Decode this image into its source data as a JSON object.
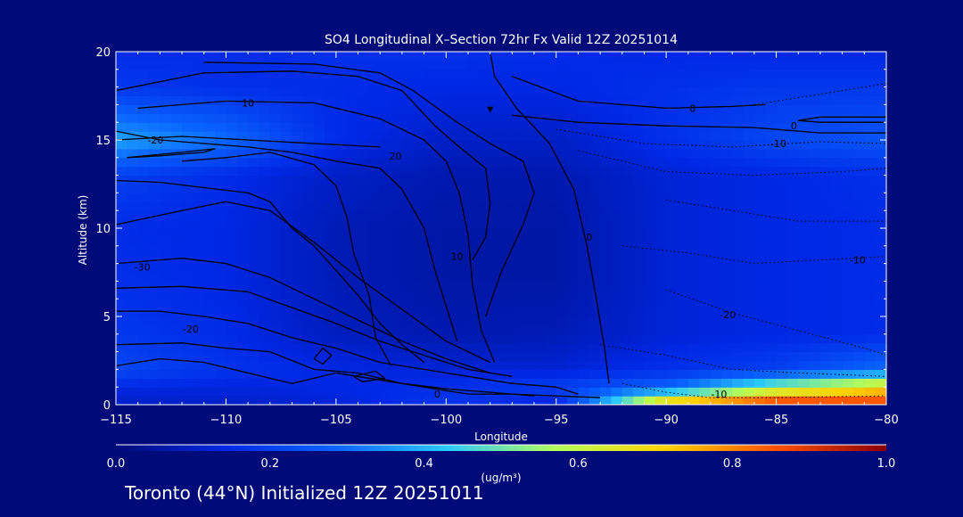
{
  "chart_data": {
    "type": "heatmap",
    "title": "SO4 Longitudinal X–Section 72hr  Fx Valid 12Z 20251014",
    "xlabel": "Longitude",
    "ylabel": "Altitude (km)",
    "xlim": [
      -115,
      -80
    ],
    "ylim": [
      0,
      20
    ],
    "x_ticks": [
      -115,
      -110,
      -105,
      -100,
      -95,
      -90,
      -85,
      -80
    ],
    "x_tick_labels": [
      "−115",
      "−110",
      "−105",
      "−100",
      "−95",
      "−90",
      "−85",
      "−80"
    ],
    "y_ticks": [
      0,
      5,
      10,
      15,
      20
    ],
    "y_tick_labels": [
      "0",
      "5",
      "10",
      "15",
      "20"
    ],
    "colorbar": {
      "min": 0.0,
      "max": 1.0,
      "ticks": [
        0.0,
        0.2,
        0.4,
        0.6,
        0.8,
        1.0
      ],
      "tick_labels": [
        "0.0",
        "0.2",
        "0.4",
        "0.6",
        "0.8",
        "1.0"
      ],
      "units": "(ug/m³)",
      "colors": [
        "#000a78",
        "#0028e6",
        "#0a64ff",
        "#28c8ff",
        "#b4ff5a",
        "#ffd200",
        "#ff5000",
        "#8c0000"
      ]
    },
    "concentration_field": {
      "lon": [
        -115,
        -110,
        -105,
        -100,
        -95,
        -90,
        -85,
        -80
      ],
      "alt": [
        0,
        1,
        2,
        4,
        7,
        10,
        13,
        15,
        18,
        20
      ],
      "values": [
        [
          0.1,
          0.1,
          0.12,
          0.18,
          0.12,
          0.8,
          0.95,
          0.9
        ],
        [
          0.14,
          0.13,
          0.14,
          0.16,
          0.2,
          0.28,
          0.55,
          0.7
        ],
        [
          0.22,
          0.17,
          0.14,
          0.12,
          0.12,
          0.16,
          0.2,
          0.3
        ],
        [
          0.18,
          0.15,
          0.09,
          0.07,
          0.08,
          0.12,
          0.14,
          0.15
        ],
        [
          0.16,
          0.14,
          0.08,
          0.06,
          0.06,
          0.12,
          0.14,
          0.15
        ],
        [
          0.15,
          0.14,
          0.08,
          0.06,
          0.06,
          0.12,
          0.14,
          0.15
        ],
        [
          0.2,
          0.15,
          0.1,
          0.07,
          0.07,
          0.12,
          0.14,
          0.16
        ],
        [
          0.38,
          0.3,
          0.15,
          0.1,
          0.1,
          0.16,
          0.22,
          0.25
        ],
        [
          0.18,
          0.16,
          0.15,
          0.14,
          0.14,
          0.16,
          0.18,
          0.18
        ],
        [
          0.15,
          0.15,
          0.16,
          0.16,
          0.15,
          0.14,
          0.14,
          0.14
        ]
      ]
    },
    "contour_lines": [
      {
        "style": "solid",
        "points": [
          [
            -115,
            2.2
          ],
          [
            -113,
            2.6
          ],
          [
            -111,
            2.4
          ],
          [
            -109,
            1.8
          ],
          [
            -107,
            1.2
          ],
          [
            -105,
            1.8
          ],
          [
            -103,
            1.4
          ],
          [
            -101,
            1.0
          ],
          [
            -99,
            0.6
          ],
          [
            -97,
            0.6
          ],
          [
            -95,
            0.5
          ],
          [
            -93,
            0.4
          ]
        ]
      },
      {
        "style": "solid",
        "points": [
          [
            -115,
            3.4
          ],
          [
            -112,
            3.5
          ],
          [
            -110,
            3.2
          ],
          [
            -108,
            3.0
          ],
          [
            -106,
            2.0
          ],
          [
            -104,
            1.8
          ],
          [
            -102,
            1.2
          ],
          [
            -100,
            0.9
          ],
          [
            -98,
            0.7
          ],
          [
            -96,
            0.5
          ]
        ]
      },
      {
        "style": "solid",
        "points": [
          [
            -115,
            5.3
          ],
          [
            -113,
            5.3
          ],
          [
            -111,
            5.0
          ],
          [
            -109,
            4.6
          ],
          [
            -107,
            3.8
          ],
          [
            -105,
            3.2
          ],
          [
            -103,
            2.4
          ],
          [
            -101,
            2.0
          ],
          [
            -99,
            1.6
          ],
          [
            -97,
            1.2
          ],
          [
            -95,
            1.0
          ],
          [
            -94,
            0.6
          ]
        ]
      },
      {
        "style": "solid",
        "points": [
          [
            -115,
            6.6
          ],
          [
            -112,
            6.7
          ],
          [
            -109,
            6.4
          ],
          [
            -107,
            5.5
          ],
          [
            -105,
            4.6
          ],
          [
            -103,
            3.6
          ],
          [
            -101,
            2.8
          ],
          [
            -99,
            2.0
          ],
          [
            -97,
            1.6
          ]
        ]
      },
      {
        "style": "solid",
        "points": [
          [
            -115,
            8.0
          ],
          [
            -112,
            8.3
          ],
          [
            -110,
            8.0
          ],
          [
            -108,
            7.2
          ],
          [
            -106,
            6.0
          ],
          [
            -104,
            4.8
          ],
          [
            -102,
            3.6
          ],
          [
            -100,
            2.6
          ],
          [
            -98,
            1.8
          ]
        ]
      },
      {
        "style": "solid",
        "points": [
          [
            -115,
            10.2
          ],
          [
            -112,
            11.0
          ],
          [
            -110,
            11.5
          ],
          [
            -108,
            11.0
          ],
          [
            -106,
            9.2
          ],
          [
            -104,
            7.2
          ],
          [
            -102,
            5.4
          ],
          [
            -100,
            3.6
          ],
          [
            -98,
            2.4
          ]
        ]
      },
      {
        "style": "solid",
        "points": [
          [
            -115,
            12.7
          ],
          [
            -113,
            12.6
          ],
          [
            -111,
            12.3
          ],
          [
            -109,
            12.0
          ],
          [
            -108,
            11.5
          ],
          [
            -107,
            10.0
          ],
          [
            -106,
            9.0
          ],
          [
            -105,
            7.6
          ],
          [
            -104,
            6.2
          ],
          [
            -103,
            4.6
          ],
          [
            -102,
            3.4
          ],
          [
            -101,
            2.4
          ]
        ]
      },
      {
        "style": "solid",
        "points": [
          [
            -112,
            13.8
          ],
          [
            -110,
            14.0
          ],
          [
            -108,
            14.3
          ],
          [
            -106,
            13.6
          ],
          [
            -105,
            12.4
          ],
          [
            -104.5,
            10.6
          ],
          [
            -104.2,
            8.6
          ],
          [
            -103.5,
            6.2
          ],
          [
            -103.2,
            3.8
          ],
          [
            -102.5,
            2.2
          ]
        ]
      },
      {
        "style": "solid",
        "points": [
          [
            -115,
            15.5
          ],
          [
            -113,
            15.0
          ],
          [
            -111,
            14.8
          ],
          [
            -109,
            14.6
          ],
          [
            -107,
            14.3
          ],
          [
            -105,
            13.8
          ],
          [
            -103,
            13.4
          ],
          [
            -102,
            12.2
          ],
          [
            -101,
            10.0
          ],
          [
            -100.5,
            7.6
          ],
          [
            -100,
            5.6
          ],
          [
            -99.5,
            3.6
          ]
        ]
      },
      {
        "style": "solid",
        "points": [
          [
            -114,
            16.8
          ],
          [
            -110,
            17.2
          ],
          [
            -106,
            17.1
          ],
          [
            -103,
            16.2
          ],
          [
            -101,
            15.0
          ],
          [
            -100,
            13.8
          ],
          [
            -99.4,
            12.0
          ],
          [
            -99,
            9.6
          ],
          [
            -98.8,
            6.8
          ],
          [
            -98.4,
            4.2
          ],
          [
            -97.8,
            2.4
          ]
        ]
      },
      {
        "style": "solid",
        "points": [
          [
            -115,
            17.8
          ],
          [
            -111,
            18.8
          ],
          [
            -107,
            18.9
          ],
          [
            -104,
            18.6
          ],
          [
            -102,
            17.8
          ],
          [
            -100.5,
            15.8
          ],
          [
            -99.4,
            14.6
          ],
          [
            -98.2,
            13.4
          ],
          [
            -98,
            11.4
          ],
          [
            -98.2,
            9.5
          ],
          [
            -98.8,
            8.2
          ]
        ]
      },
      {
        "style": "solid",
        "points": [
          [
            -111,
            19.4
          ],
          [
            -106,
            19.3
          ],
          [
            -103,
            18.8
          ],
          [
            -101.5,
            17.8
          ],
          [
            -99.5,
            16.0
          ],
          [
            -98,
            14.8
          ],
          [
            -96.5,
            13.8
          ],
          [
            -96,
            12.0
          ],
          [
            -96.5,
            10.2
          ],
          [
            -97.5,
            7.5
          ],
          [
            -98.2,
            5.0
          ]
        ]
      },
      {
        "style": "solid",
        "points": [
          [
            -98,
            20
          ],
          [
            -97.8,
            18.6
          ],
          [
            -96.8,
            16.8
          ],
          [
            -95.3,
            14.8
          ],
          [
            -94.2,
            12.2
          ],
          [
            -93.6,
            9.0
          ],
          [
            -93.2,
            6.2
          ],
          [
            -92.8,
            3.2
          ],
          [
            -92.6,
            1.2
          ]
        ]
      },
      {
        "style": "solid",
        "points": [
          [
            -115,
            15.0
          ],
          [
            -112,
            15.2
          ],
          [
            -109,
            15.0
          ],
          [
            -106,
            14.8
          ],
          [
            -103,
            14.6
          ]
        ]
      },
      {
        "style": "solid",
        "points": [
          [
            -114.5,
            14.0
          ],
          [
            -113,
            14.1
          ],
          [
            -111,
            14.3
          ],
          [
            -110.5,
            14.5
          ],
          [
            -112,
            14.3
          ],
          [
            -114.5,
            14.0
          ]
        ]
      },
      {
        "style": "solid",
        "points": [
          [
            -97,
            18.6
          ],
          [
            -94,
            17.2
          ],
          [
            -90,
            16.8
          ],
          [
            -87,
            16.9
          ],
          [
            -85.5,
            17.0
          ]
        ]
      },
      {
        "style": "solid",
        "points": [
          [
            -97,
            16.4
          ],
          [
            -94,
            16.0
          ],
          [
            -90,
            15.8
          ],
          [
            -86,
            15.7
          ],
          [
            -83,
            15.4
          ],
          [
            -80,
            15.4
          ]
        ]
      },
      {
        "style": "solid",
        "points": [
          [
            -80,
            16.0
          ],
          [
            -83,
            16.0
          ],
          [
            -84,
            16.1
          ],
          [
            -83,
            16.3
          ],
          [
            -80,
            16.3
          ]
        ]
      },
      {
        "style": "solid",
        "points": [
          [
            -106,
            2.6
          ],
          [
            -105.6,
            3.2
          ],
          [
            -105.2,
            2.8
          ],
          [
            -105.6,
            2.3
          ],
          [
            -106,
            2.6
          ]
        ]
      },
      {
        "style": "solid",
        "points": [
          [
            -104.2,
            1.6
          ],
          [
            -103.2,
            1.9
          ],
          [
            -102.8,
            1.5
          ],
          [
            -103.8,
            1.3
          ],
          [
            -104.2,
            1.6
          ]
        ]
      },
      {
        "style": "dotted",
        "points": [
          [
            -86,
            17.0
          ],
          [
            -84,
            17.4
          ],
          [
            -82,
            17.8
          ],
          [
            -80,
            18.2
          ]
        ]
      },
      {
        "style": "dotted",
        "points": [
          [
            -95,
            15.6
          ],
          [
            -91,
            14.8
          ],
          [
            -87,
            14.6
          ],
          [
            -83,
            14.9
          ],
          [
            -80,
            14.8
          ]
        ]
      },
      {
        "style": "dotted",
        "points": [
          [
            -94,
            14.4
          ],
          [
            -90,
            13.2
          ],
          [
            -86,
            13.0
          ],
          [
            -82,
            13.2
          ],
          [
            -80,
            13.4
          ]
        ]
      },
      {
        "style": "dotted",
        "points": [
          [
            -90,
            11.6
          ],
          [
            -87,
            11.0
          ],
          [
            -84,
            10.4
          ],
          [
            -80,
            10.4
          ]
        ]
      },
      {
        "style": "dotted",
        "points": [
          [
            -92,
            9.0
          ],
          [
            -89,
            8.6
          ],
          [
            -86,
            8.0
          ],
          [
            -83,
            8.2
          ],
          [
            -80,
            8.4
          ]
        ]
      },
      {
        "style": "dotted",
        "points": [
          [
            -90,
            6.5
          ],
          [
            -87,
            5.2
          ],
          [
            -84,
            4.2
          ],
          [
            -81,
            3.2
          ],
          [
            -80,
            2.8
          ]
        ]
      },
      {
        "style": "dotted",
        "points": [
          [
            -93,
            3.4
          ],
          [
            -90,
            2.8
          ],
          [
            -87,
            2.0
          ],
          [
            -84,
            1.8
          ],
          [
            -80,
            1.6
          ]
        ]
      },
      {
        "style": "dotted",
        "points": [
          [
            -92,
            1.2
          ],
          [
            -90,
            0.7
          ],
          [
            -88,
            0.4
          ],
          [
            -85,
            0.4
          ],
          [
            -80,
            0.5
          ]
        ]
      }
    ],
    "contour_labels": [
      {
        "text": "10",
        "x": -109,
        "y": 17.1
      },
      {
        "text": "-20",
        "x": -113.2,
        "y": 15.0
      },
      {
        "text": "20",
        "x": -102.3,
        "y": 14.1
      },
      {
        "text": "10",
        "x": -99.5,
        "y": 8.4
      },
      {
        "text": "0",
        "x": -93.5,
        "y": 9.5
      },
      {
        "text": "0",
        "x": -88.8,
        "y": 16.8
      },
      {
        "text": "0",
        "x": -84.2,
        "y": 15.8
      },
      {
        "text": "-10",
        "x": -84.9,
        "y": 14.8
      },
      {
        "text": "-30",
        "x": -113.8,
        "y": 7.8
      },
      {
        "text": "-20",
        "x": -111.6,
        "y": 4.3
      },
      {
        "text": "-20",
        "x": -87.2,
        "y": 5.1
      },
      {
        "text": "-10",
        "x": -81.3,
        "y": 8.2
      },
      {
        "text": "0",
        "x": -100.4,
        "y": 0.6
      },
      {
        "text": "-10",
        "x": -87.6,
        "y": 0.6
      }
    ],
    "markers": [
      {
        "text": "▼",
        "x": -98,
        "y": 16.8
      }
    ]
  },
  "footer_text": "Toronto (44°N) Initialized 12Z 20251011"
}
